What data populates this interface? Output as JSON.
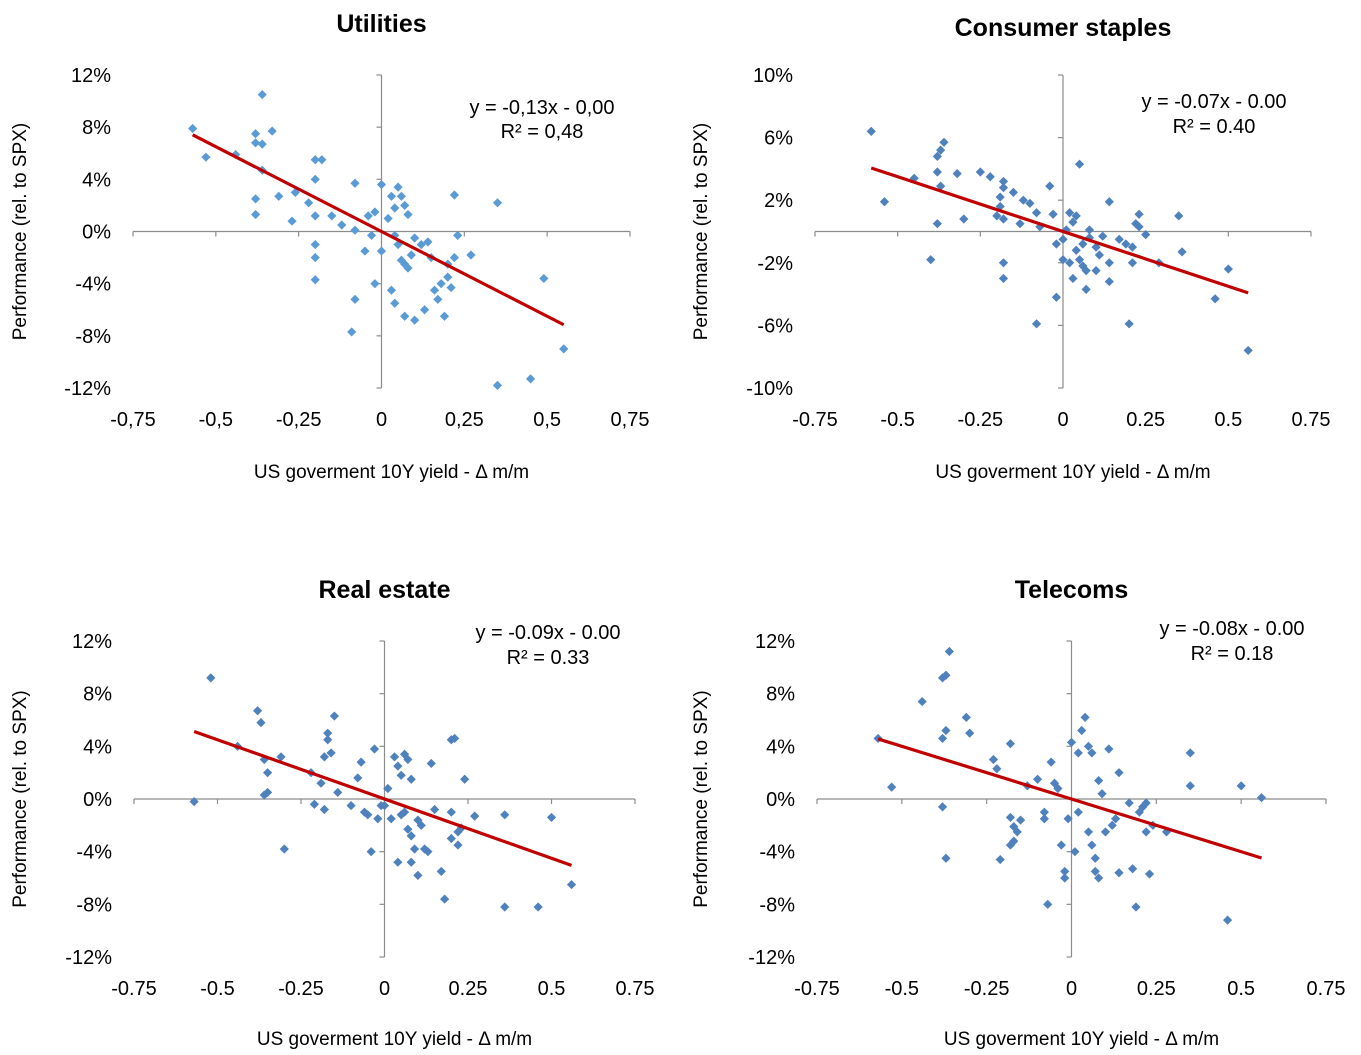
{
  "chart_data": [
    {
      "type": "scatter",
      "title": "Utilities",
      "xlabel": "US goverment 10Y yield - Δ m/m",
      "ylabel": "Performance (rel. to SPX)",
      "xlim": [
        -0.75,
        0.75
      ],
      "ylim": [
        -0.12,
        0.12
      ],
      "x_ticks": [
        "-0,75",
        "-0,5",
        "-0,25",
        "0",
        "0,25",
        "0,5",
        "0,75"
      ],
      "y_ticks": [
        "12%",
        "8%",
        "4%",
        "0%",
        "-4%",
        "-8%",
        "-12%"
      ],
      "equation": "y = -0,13x - 0,00",
      "r_squared": "R² = 0,48",
      "trend": {
        "slope": -0.13,
        "intercept": 0.0
      },
      "point_color": "#5b9bd5",
      "trend_color": "#c00000",
      "points": [
        [
          -0.57,
          0.079
        ],
        [
          -0.53,
          0.057
        ],
        [
          -0.44,
          0.059
        ],
        [
          -0.38,
          0.075
        ],
        [
          -0.38,
          0.068
        ],
        [
          -0.36,
          0.105
        ],
        [
          -0.36,
          0.067
        ],
        [
          -0.33,
          0.077
        ],
        [
          -0.36,
          0.047
        ],
        [
          -0.38,
          0.025
        ],
        [
          -0.38,
          0.013
        ],
        [
          -0.31,
          0.027
        ],
        [
          -0.26,
          0.03
        ],
        [
          -0.27,
          0.008
        ],
        [
          -0.2,
          0.055
        ],
        [
          -0.18,
          0.055
        ],
        [
          -0.2,
          0.04
        ],
        [
          -0.22,
          0.022
        ],
        [
          -0.2,
          0.012
        ],
        [
          -0.2,
          -0.01
        ],
        [
          -0.2,
          -0.02
        ],
        [
          -0.2,
          -0.037
        ],
        [
          -0.15,
          0.012
        ],
        [
          -0.12,
          0.005
        ],
        [
          -0.08,
          0.037
        ],
        [
          -0.08,
          0.001
        ],
        [
          -0.04,
          0.012
        ],
        [
          -0.02,
          0.015
        ],
        [
          -0.03,
          -0.003
        ],
        [
          -0.05,
          -0.015
        ],
        [
          -0.02,
          -0.04
        ],
        [
          -0.08,
          -0.052
        ],
        [
          -0.09,
          -0.077
        ],
        [
          0.0,
          0.036
        ],
        [
          0.0,
          -0.015
        ],
        [
          0.02,
          0.01
        ],
        [
          0.03,
          0.027
        ],
        [
          0.05,
          0.034
        ],
        [
          0.06,
          0.027
        ],
        [
          0.04,
          0.018
        ],
        [
          0.07,
          0.02
        ],
        [
          0.08,
          0.013
        ],
        [
          0.04,
          -0.003
        ],
        [
          0.05,
          -0.01
        ],
        [
          0.06,
          -0.022
        ],
        [
          0.07,
          -0.025
        ],
        [
          0.08,
          -0.028
        ],
        [
          0.09,
          -0.018
        ],
        [
          0.1,
          -0.005
        ],
        [
          0.12,
          -0.01
        ],
        [
          0.14,
          -0.008
        ],
        [
          0.15,
          -0.02
        ],
        [
          0.16,
          -0.045
        ],
        [
          0.17,
          -0.052
        ],
        [
          0.18,
          -0.04
        ],
        [
          0.2,
          -0.035
        ],
        [
          0.2,
          -0.025
        ],
        [
          0.21,
          -0.043
        ],
        [
          0.22,
          -0.02
        ],
        [
          0.23,
          -0.003
        ],
        [
          0.22,
          0.028
        ],
        [
          0.27,
          -0.018
        ],
        [
          0.35,
          0.022
        ],
        [
          0.03,
          -0.045
        ],
        [
          0.04,
          -0.055
        ],
        [
          0.07,
          -0.065
        ],
        [
          0.1,
          -0.068
        ],
        [
          0.13,
          -0.06
        ],
        [
          0.19,
          -0.065
        ],
        [
          0.35,
          -0.118
        ],
        [
          0.45,
          -0.113
        ],
        [
          0.49,
          -0.036
        ],
        [
          0.55,
          -0.09
        ]
      ]
    },
    {
      "type": "scatter",
      "title": "Consumer staples",
      "xlabel": "US goverment 10Y yield - Δ m/m",
      "ylabel": "Performance (rel. to SPX)",
      "xlim": [
        -0.75,
        0.75
      ],
      "ylim": [
        -0.1,
        0.1
      ],
      "x_ticks": [
        "-0.75",
        "-0.5",
        "-0.25",
        "0",
        "0.25",
        "0.5",
        "0.75"
      ],
      "y_ticks": [
        "10%",
        "6%",
        "2%",
        "-2%",
        "-6%",
        "-10%"
      ],
      "equation": "y = -0.07x - 0.00",
      "r_squared": "R² = 0.40",
      "trend": {
        "slope": -0.07,
        "intercept": 0.0
      },
      "point_color": "#4f81bd",
      "trend_color": "#c00000",
      "points": [
        [
          -0.58,
          0.064
        ],
        [
          -0.54,
          0.019
        ],
        [
          -0.45,
          0.034
        ],
        [
          -0.36,
          0.057
        ],
        [
          -0.37,
          0.052
        ],
        [
          -0.38,
          0.048
        ],
        [
          -0.38,
          0.038
        ],
        [
          -0.37,
          0.029
        ],
        [
          -0.32,
          0.037
        ],
        [
          -0.38,
          0.005
        ],
        [
          -0.4,
          -0.018
        ],
        [
          -0.3,
          0.008
        ],
        [
          -0.25,
          0.038
        ],
        [
          -0.22,
          0.035
        ],
        [
          -0.18,
          0.032
        ],
        [
          -0.18,
          0.028
        ],
        [
          -0.19,
          0.022
        ],
        [
          -0.19,
          0.016
        ],
        [
          -0.2,
          0.01
        ],
        [
          -0.18,
          0.008
        ],
        [
          -0.15,
          0.025
        ],
        [
          -0.12,
          0.02
        ],
        [
          -0.1,
          0.018
        ],
        [
          -0.13,
          0.005
        ],
        [
          -0.18,
          -0.02
        ],
        [
          -0.18,
          -0.03
        ],
        [
          -0.08,
          -0.059
        ],
        [
          -0.08,
          0.012
        ],
        [
          -0.07,
          0.003
        ],
        [
          -0.04,
          0.029
        ],
        [
          -0.03,
          0.011
        ],
        [
          -0.02,
          -0.008
        ],
        [
          -0.02,
          -0.042
        ],
        [
          0.0,
          -0.005
        ],
        [
          0.01,
          0.001
        ],
        [
          0.02,
          0.012
        ],
        [
          0.03,
          0.006
        ],
        [
          0.04,
          0.01
        ],
        [
          0.05,
          0.043
        ],
        [
          0.04,
          -0.012
        ],
        [
          0.05,
          -0.018
        ],
        [
          0.06,
          -0.022
        ],
        [
          0.07,
          -0.037
        ],
        [
          0.07,
          -0.025
        ],
        [
          0.06,
          -0.008
        ],
        [
          0.08,
          0.001
        ],
        [
          0.08,
          -0.004
        ],
        [
          0.1,
          -0.01
        ],
        [
          0.1,
          -0.025
        ],
        [
          0.11,
          -0.015
        ],
        [
          0.12,
          -0.003
        ],
        [
          0.14,
          0.019
        ],
        [
          0.14,
          -0.02
        ],
        [
          0.14,
          -0.032
        ],
        [
          0.17,
          -0.005
        ],
        [
          0.19,
          -0.008
        ],
        [
          0.2,
          -0.059
        ],
        [
          0.21,
          -0.02
        ],
        [
          0.21,
          -0.01
        ],
        [
          0.22,
          0.005
        ],
        [
          0.23,
          0.011
        ],
        [
          0.23,
          0.003
        ],
        [
          0.25,
          -0.002
        ],
        [
          0.29,
          -0.02
        ],
        [
          0.35,
          0.01
        ],
        [
          0.36,
          -0.013
        ],
        [
          0.02,
          -0.02
        ],
        [
          0.03,
          -0.03
        ],
        [
          0.0,
          -0.018
        ],
        [
          0.46,
          -0.043
        ],
        [
          0.5,
          -0.024
        ],
        [
          0.56,
          -0.076
        ]
      ]
    },
    {
      "type": "scatter",
      "title": "Real estate",
      "xlabel": "US goverment 10Y yield - Δ m/m",
      "ylabel": "Performance (rel. to SPX)",
      "xlim": [
        -0.75,
        0.75
      ],
      "ylim": [
        -0.12,
        0.12
      ],
      "x_ticks": [
        "-0.75",
        "-0.5",
        "-0.25",
        "0",
        "0.25",
        "0.5",
        "0.75"
      ],
      "y_ticks": [
        "12%",
        "8%",
        "4%",
        "0%",
        "-4%",
        "-8%",
        "-12%"
      ],
      "equation": "y = -0.09x - 0.00",
      "r_squared": "R² = 0.33",
      "trend": {
        "slope": -0.09,
        "intercept": 0.0
      },
      "point_color": "#4f81bd",
      "trend_color": "#c00000",
      "points": [
        [
          -0.57,
          -0.002
        ],
        [
          -0.52,
          0.092
        ],
        [
          -0.44,
          0.04
        ],
        [
          -0.38,
          0.067
        ],
        [
          -0.37,
          0.058
        ],
        [
          -0.36,
          0.03
        ],
        [
          -0.35,
          0.02
        ],
        [
          -0.35,
          0.005
        ],
        [
          -0.36,
          0.003
        ],
        [
          -0.31,
          0.032
        ],
        [
          -0.3,
          -0.038
        ],
        [
          -0.22,
          0.02
        ],
        [
          -0.21,
          -0.004
        ],
        [
          -0.19,
          0.012
        ],
        [
          -0.18,
          0.032
        ],
        [
          -0.17,
          0.05
        ],
        [
          -0.17,
          0.045
        ],
        [
          -0.16,
          0.035
        ],
        [
          -0.15,
          0.063
        ],
        [
          -0.14,
          0.005
        ],
        [
          -0.18,
          -0.008
        ],
        [
          -0.1,
          -0.005
        ],
        [
          -0.08,
          0.016
        ],
        [
          -0.07,
          0.028
        ],
        [
          -0.06,
          -0.01
        ],
        [
          -0.05,
          -0.012
        ],
        [
          -0.04,
          -0.04
        ],
        [
          -0.03,
          0.038
        ],
        [
          -0.02,
          -0.015
        ],
        [
          -0.01,
          -0.005
        ],
        [
          0.0,
          -0.005
        ],
        [
          0.01,
          0.008
        ],
        [
          0.02,
          -0.015
        ],
        [
          0.03,
          0.032
        ],
        [
          0.04,
          0.025
        ],
        [
          0.05,
          0.018
        ],
        [
          0.04,
          -0.048
        ],
        [
          0.05,
          -0.012
        ],
        [
          0.06,
          0.034
        ],
        [
          0.07,
          0.03
        ],
        [
          0.07,
          -0.023
        ],
        [
          0.08,
          -0.028
        ],
        [
          0.08,
          0.015
        ],
        [
          0.09,
          -0.038
        ],
        [
          0.1,
          -0.058
        ],
        [
          0.1,
          -0.016
        ],
        [
          0.11,
          -0.02
        ],
        [
          0.12,
          -0.038
        ],
        [
          0.13,
          -0.04
        ],
        [
          0.14,
          0.027
        ],
        [
          0.15,
          -0.008
        ],
        [
          0.17,
          -0.055
        ],
        [
          0.18,
          -0.076
        ],
        [
          0.2,
          0.045
        ],
        [
          0.21,
          0.046
        ],
        [
          0.2,
          -0.03
        ],
        [
          0.22,
          -0.035
        ],
        [
          0.23,
          -0.022
        ],
        [
          0.24,
          0.015
        ],
        [
          0.22,
          -0.025
        ],
        [
          0.27,
          -0.013
        ],
        [
          0.36,
          -0.012
        ],
        [
          0.36,
          -0.082
        ],
        [
          0.46,
          -0.082
        ],
        [
          0.5,
          -0.014
        ],
        [
          0.56,
          -0.065
        ],
        [
          0.08,
          -0.048
        ],
        [
          0.06,
          -0.01
        ],
        [
          0.2,
          -0.01
        ]
      ]
    },
    {
      "type": "scatter",
      "title": "Telecoms",
      "xlabel": "US goverment 10Y yield - Δ m/m",
      "ylabel": "Performance (rel. to SPX)",
      "xlim": [
        -0.75,
        0.75
      ],
      "ylim": [
        -0.12,
        0.12
      ],
      "x_ticks": [
        "-0.75",
        "-0.5",
        "-0.25",
        "0",
        "0.25",
        "0.5",
        "0.75"
      ],
      "y_ticks": [
        "12%",
        "8%",
        "4%",
        "0%",
        "-4%",
        "-8%",
        "-12%"
      ],
      "equation": "y = -0.08x - 0.00",
      "r_squared": "R² = 0.18",
      "trend": {
        "slope": -0.08,
        "intercept": 0.0
      },
      "point_color": "#4f81bd",
      "trend_color": "#c00000",
      "points": [
        [
          -0.57,
          0.046
        ],
        [
          -0.53,
          0.009
        ],
        [
          -0.44,
          0.074
        ],
        [
          -0.38,
          0.092
        ],
        [
          -0.37,
          0.094
        ],
        [
          -0.36,
          0.112
        ],
        [
          -0.37,
          0.052
        ],
        [
          -0.38,
          0.046
        ],
        [
          -0.38,
          -0.006
        ],
        [
          -0.37,
          -0.045
        ],
        [
          -0.31,
          0.062
        ],
        [
          -0.3,
          0.05
        ],
        [
          -0.23,
          0.03
        ],
        [
          -0.22,
          0.023
        ],
        [
          -0.18,
          0.042
        ],
        [
          -0.18,
          -0.014
        ],
        [
          -0.17,
          -0.021
        ],
        [
          -0.17,
          -0.032
        ],
        [
          -0.16,
          -0.025
        ],
        [
          -0.15,
          -0.016
        ],
        [
          -0.18,
          -0.035
        ],
        [
          -0.21,
          -0.046
        ],
        [
          -0.13,
          0.01
        ],
        [
          -0.1,
          0.015
        ],
        [
          -0.08,
          -0.01
        ],
        [
          -0.08,
          -0.015
        ],
        [
          -0.07,
          -0.08
        ],
        [
          -0.06,
          0.028
        ],
        [
          -0.05,
          0.012
        ],
        [
          -0.04,
          0.008
        ],
        [
          -0.03,
          -0.035
        ],
        [
          -0.02,
          -0.055
        ],
        [
          -0.02,
          -0.06
        ],
        [
          -0.01,
          -0.015
        ],
        [
          0.0,
          0.043
        ],
        [
          0.01,
          -0.04
        ],
        [
          0.02,
          0.035
        ],
        [
          0.03,
          0.052
        ],
        [
          0.04,
          0.062
        ],
        [
          0.05,
          0.04
        ],
        [
          0.06,
          0.035
        ],
        [
          0.05,
          -0.025
        ],
        [
          0.06,
          -0.035
        ],
        [
          0.07,
          -0.045
        ],
        [
          0.07,
          -0.055
        ],
        [
          0.08,
          -0.06
        ],
        [
          0.08,
          0.014
        ],
        [
          0.09,
          0.004
        ],
        [
          0.1,
          -0.025
        ],
        [
          0.11,
          0.038
        ],
        [
          0.12,
          -0.02
        ],
        [
          0.13,
          -0.015
        ],
        [
          0.14,
          0.02
        ],
        [
          0.14,
          -0.056
        ],
        [
          0.17,
          -0.003
        ],
        [
          0.18,
          -0.053
        ],
        [
          0.19,
          -0.082
        ],
        [
          0.2,
          -0.01
        ],
        [
          0.21,
          -0.006
        ],
        [
          0.22,
          -0.003
        ],
        [
          0.22,
          -0.025
        ],
        [
          0.23,
          -0.057
        ],
        [
          0.24,
          -0.02
        ],
        [
          0.28,
          -0.025
        ],
        [
          0.35,
          0.035
        ],
        [
          0.35,
          0.01
        ],
        [
          0.46,
          -0.092
        ],
        [
          0.5,
          0.01
        ],
        [
          0.56,
          0.001
        ],
        [
          0.02,
          -0.01
        ]
      ]
    }
  ]
}
